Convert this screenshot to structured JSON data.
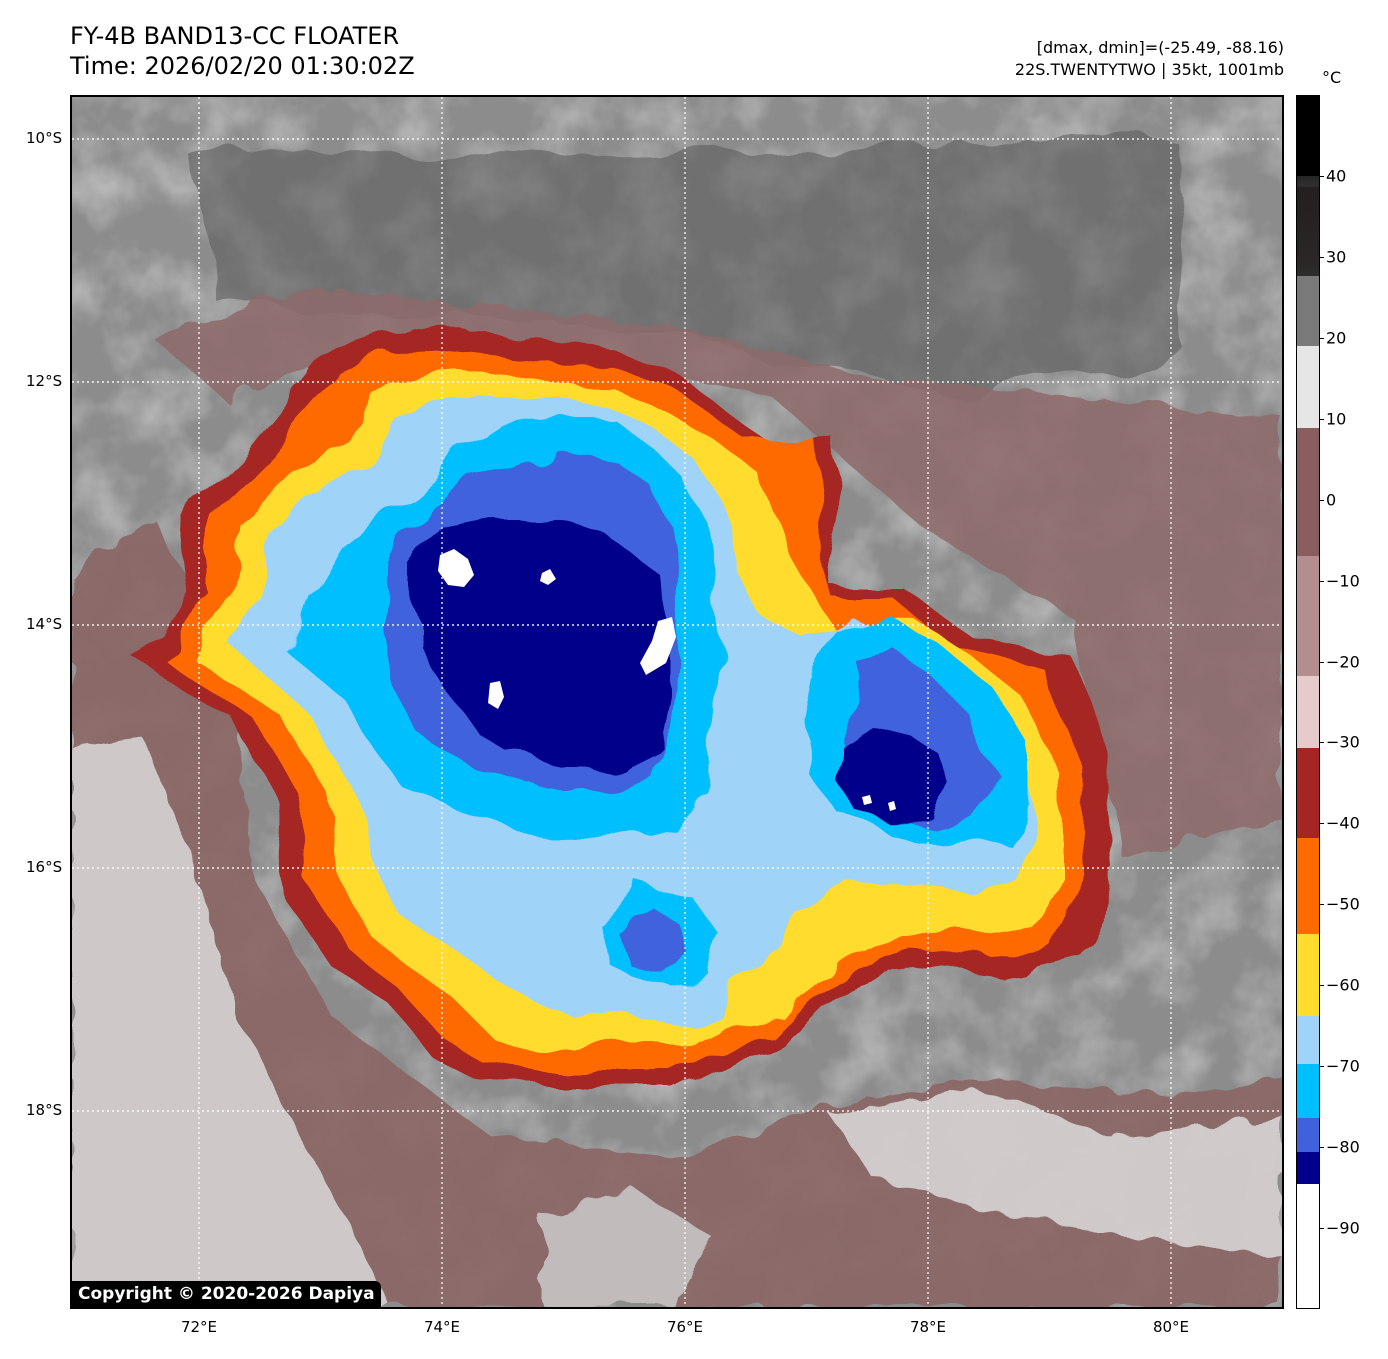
{
  "header": {
    "title": "FY-4B BAND13-CC FLOATER",
    "time": "Time: 2026/02/20 01:30:02Z",
    "range": "[dmax, dmin]=(-25.49, -88.16)",
    "storm": "22S.TWENTYTWO | 35kt, 1001mb"
  },
  "map": {
    "copyright": "Copyright © 2020-2026 Dapiya",
    "lat_labels": [
      "10°S",
      "12°S",
      "14°S",
      "16°S",
      "18°S"
    ],
    "lon_labels": [
      "72°E",
      "74°E",
      "76°E",
      "78°E",
      "80°E"
    ],
    "lat_values": [
      -10,
      -12,
      -14,
      -16,
      -18
    ],
    "lon_values": [
      72,
      74,
      76,
      78,
      80
    ],
    "extent": {
      "lon_min": 70.95,
      "lon_max": 80.95,
      "lat_min": -19.65,
      "lat_max": -9.65
    },
    "features": [
      {
        "name": "main-cloud-shield",
        "level": "-40",
        "color": "#a52524"
      },
      {
        "name": "eastern-cluster",
        "level": "-70",
        "color": "#00bfff"
      },
      {
        "name": "main-cold-core",
        "level": "-80",
        "color": "#00008b"
      }
    ]
  },
  "colorbar": {
    "unit": "°C",
    "labels": [
      "40",
      "30",
      "20",
      "10",
      "0",
      "−10",
      "−20",
      "−30",
      "−40",
      "−50",
      "−60",
      "−70",
      "−80",
      "−90"
    ],
    "values": [
      40,
      30,
      20,
      10,
      0,
      -10,
      -20,
      -30,
      -40,
      -50,
      -60,
      -70,
      -80,
      -90
    ],
    "vmin": -100,
    "vmax": 50,
    "palette": {
      "dark_red": "#a52524",
      "orange": "#ff6b00",
      "yellow": "#ffdc2e",
      "light_blue": "#9fd3f7",
      "sky_blue": "#00bfff",
      "royal_blue": "#3f62dc",
      "navy": "#00008b",
      "white": "#ffffff"
    }
  }
}
